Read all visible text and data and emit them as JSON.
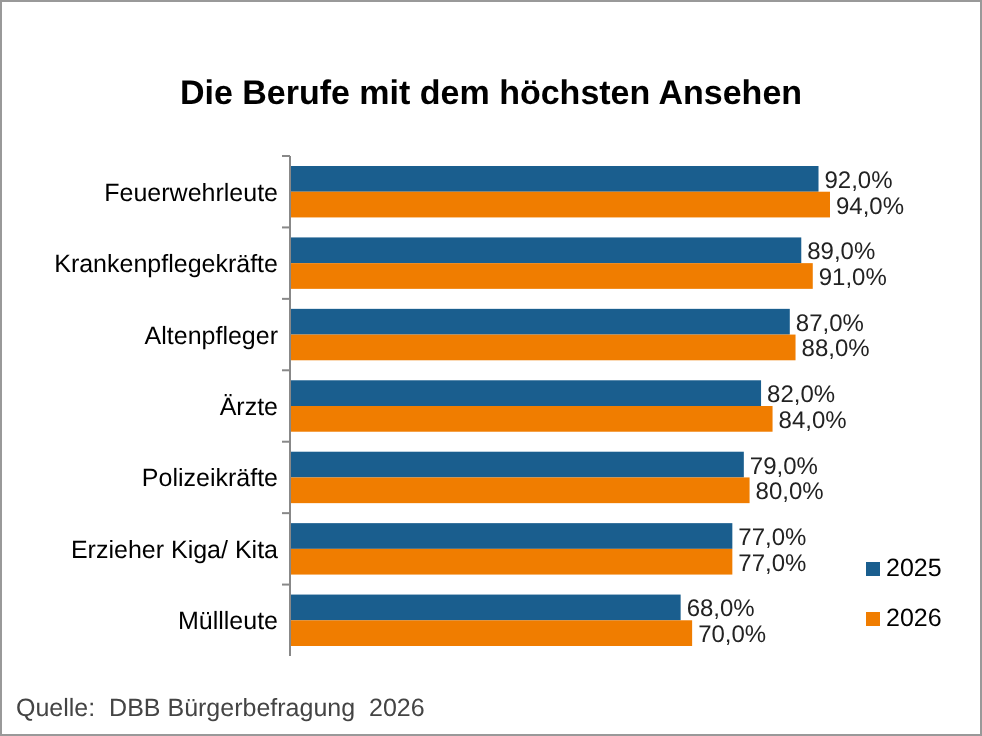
{
  "chart_data": {
    "type": "bar",
    "orientation": "horizontal",
    "title": "Die Berufe mit dem höchsten Ansehen",
    "categories": [
      "Feuerwehrleute",
      "Krankenpflegekräfte",
      "Altenpfleger",
      "Ärzte",
      "Polizeikräfte",
      "Erzieher Kiga/ Kita",
      "Müllleute"
    ],
    "series": [
      {
        "name": "2025",
        "color": "#1a5e8e",
        "values": [
          92,
          89,
          87,
          82,
          79,
          77,
          68
        ],
        "value_labels": [
          "92,0%",
          "89,0%",
          "87,0%",
          "82,0%",
          "79,0%",
          "77,0%",
          "68,0%"
        ]
      },
      {
        "name": "2026",
        "color": "#f07d00",
        "values": [
          94,
          91,
          88,
          84,
          80,
          77,
          70
        ],
        "value_labels": [
          "94,0%",
          "91,0%",
          "88,0%",
          "84,0%",
          "80,0%",
          "77,0%",
          "70,0%"
        ]
      }
    ],
    "tick_labels": "y",
    "grid": false,
    "legend": "bottom right",
    "annotations": [
      "Quelle:  DBB Bürgerbefragung  2026"
    ]
  }
}
